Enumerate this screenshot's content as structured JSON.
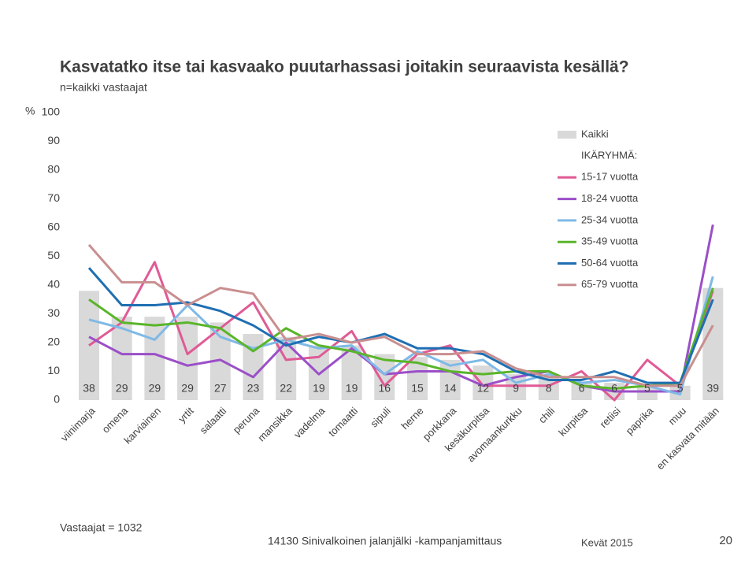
{
  "chart_data": {
    "type": "combo",
    "title": "Kasvatatko itse tai kasvaako puutarhassasi joitakin seuraavista kesällä?",
    "subtitle": "n=kaikki vastaajat",
    "y_label": "%",
    "categories": [
      "viinimarja",
      "omena",
      "karviainen",
      "yrtit",
      "salaatti",
      "peruna",
      "mansikka",
      "vadelma",
      "tomaatti",
      "sipuli",
      "herne",
      "porkkana",
      "kesäkurpitsa",
      "avomaankurkku",
      "chili",
      "kurpitsa",
      "retiisi",
      "paprika",
      "muu",
      "en kasvata mitään"
    ],
    "ylim": [
      0,
      100
    ],
    "yticks": [
      0,
      10,
      20,
      30,
      40,
      50,
      60,
      70,
      80,
      90,
      100
    ],
    "grid": false,
    "legend_heading": "IKÄRYHMÄ:",
    "series": [
      {
        "name": "Kaikki",
        "type": "bar",
        "color": "#d9d9d9",
        "values": [
          38,
          29,
          29,
          29,
          27,
          23,
          22,
          19,
          19,
          16,
          15,
          14,
          12,
          9,
          8,
          6,
          6,
          5,
          5,
          39
        ]
      },
      {
        "name": "15-17 vuotta",
        "type": "line",
        "color": "#e05a95",
        "values": [
          19,
          27,
          48,
          16,
          25,
          34,
          14,
          15,
          24,
          5,
          16,
          19,
          5,
          5,
          5,
          10,
          0,
          14,
          5,
          38
        ]
      },
      {
        "name": "18-24 vuotta",
        "type": "line",
        "color": "#9b4fc8",
        "values": [
          22,
          16,
          16,
          12,
          14,
          8,
          20,
          9,
          18,
          9,
          10,
          10,
          5,
          8,
          10,
          5,
          3,
          3,
          3,
          61
        ]
      },
      {
        "name": "25-34 vuotta",
        "type": "line",
        "color": "#7fb9e6",
        "values": [
          28,
          25,
          21,
          33,
          22,
          18,
          21,
          18,
          19,
          9,
          17,
          12,
          14,
          6,
          9,
          6,
          7,
          5,
          2,
          43
        ]
      },
      {
        "name": "35-49 vuotta",
        "type": "line",
        "color": "#5ab52a",
        "values": [
          35,
          27,
          26,
          27,
          25,
          17,
          25,
          19,
          17,
          14,
          13,
          10,
          9,
          10,
          10,
          5,
          4,
          5,
          6,
          39
        ]
      },
      {
        "name": "50-64 vuotta",
        "type": "line",
        "color": "#1f6fb2",
        "values": [
          46,
          33,
          33,
          34,
          31,
          26,
          19,
          22,
          20,
          23,
          18,
          18,
          16,
          10,
          7,
          7,
          10,
          6,
          6,
          35
        ]
      },
      {
        "name": "65-79 vuotta",
        "type": "line",
        "color": "#c98f90",
        "values": [
          54,
          41,
          41,
          33,
          39,
          37,
          21,
          23,
          20,
          22,
          16,
          16,
          17,
          11,
          8,
          8,
          8,
          5,
          5,
          26
        ]
      }
    ]
  },
  "footer": {
    "respondents": "Vastaajat = 1032",
    "campaign": "14130 Sinivalkoinen jalanjälki -kampanjamittaus",
    "season": "Kevät 2015",
    "page": "20"
  }
}
